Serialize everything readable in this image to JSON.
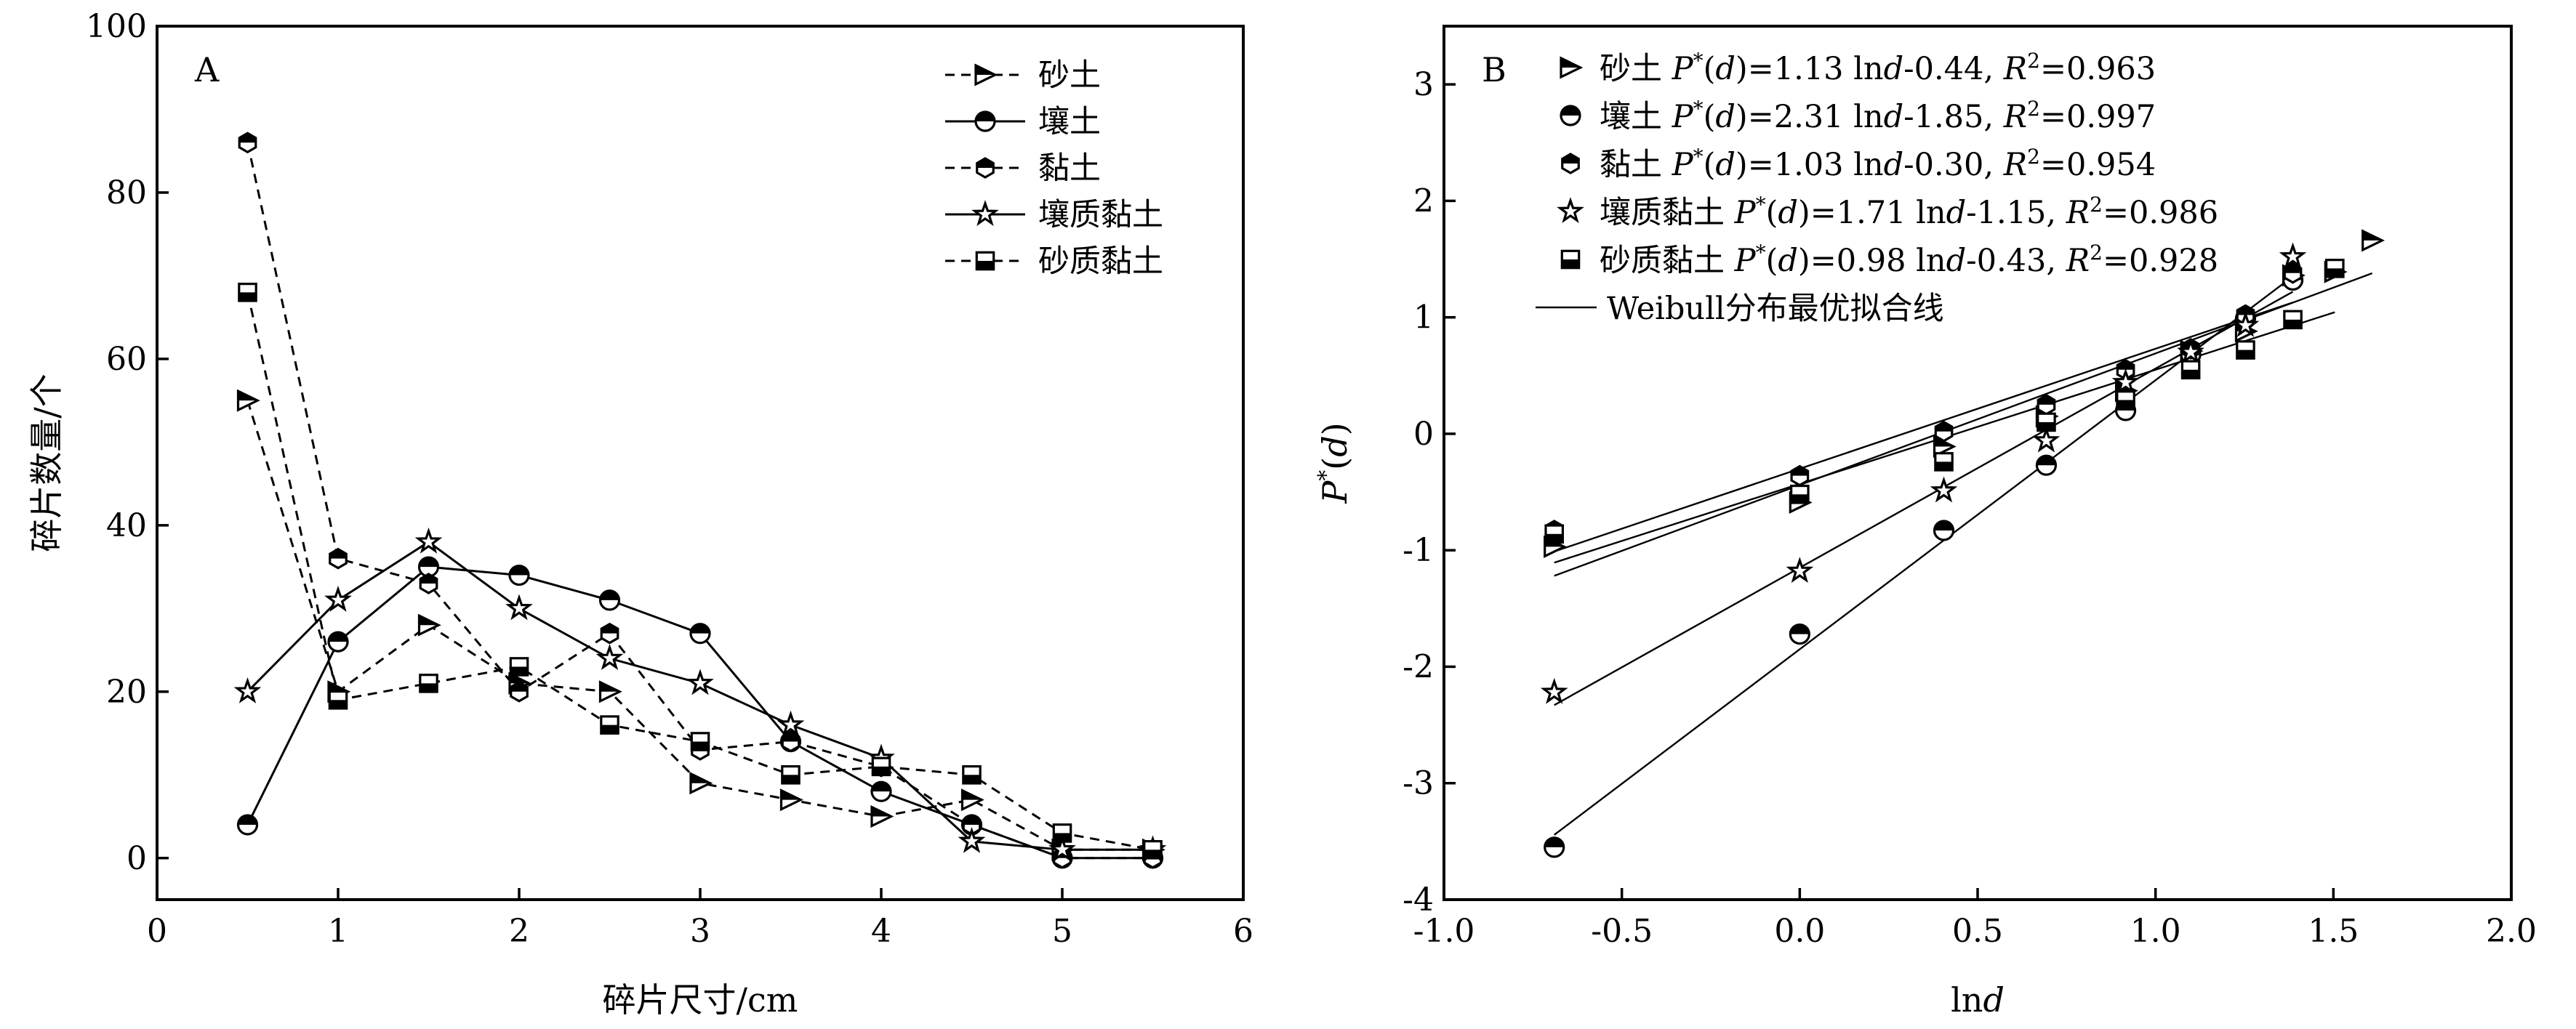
{
  "chart_data": [
    {
      "panel": "A",
      "type": "line",
      "xlabel": "碎片尺寸/cm",
      "ylabel": "碎片数量/个",
      "xlim": [
        0,
        6
      ],
      "ylim": [
        -5,
        100
      ],
      "xticks": [
        0,
        1,
        2,
        3,
        4,
        5,
        6
      ],
      "yticks": [
        0,
        20,
        40,
        60,
        80,
        100
      ],
      "grid": false,
      "legend_position": "top-right",
      "x": [
        0.5,
        1.0,
        1.5,
        2.0,
        2.5,
        3.0,
        3.5,
        4.0,
        4.5,
        5.0,
        5.5
      ],
      "series": [
        {
          "name": "砂土",
          "dash": "dashed",
          "marker": "triangle-right",
          "values": [
            55,
            20,
            28,
            21,
            20,
            9,
            7,
            5,
            7,
            1,
            1
          ]
        },
        {
          "name": "壤土",
          "dash": "solid",
          "marker": "circle-half",
          "values": [
            4,
            26,
            35,
            34,
            31,
            27,
            14,
            8,
            4,
            0,
            0
          ]
        },
        {
          "name": "黏土",
          "dash": "dashed",
          "marker": "hexagon-half",
          "values": [
            86,
            36,
            33,
            20,
            27,
            13,
            14,
            11,
            4,
            0,
            0
          ]
        },
        {
          "name": "壤质黏土",
          "dash": "solid",
          "marker": "star",
          "values": [
            20,
            31,
            38,
            30,
            24,
            21,
            16,
            12,
            2,
            1,
            1
          ]
        },
        {
          "name": "砂质黏土",
          "dash": "dashed",
          "marker": "square-half",
          "values": [
            68,
            19,
            21,
            23,
            16,
            14,
            10,
            11,
            10,
            3,
            1
          ]
        }
      ]
    },
    {
      "panel": "B",
      "type": "scatter",
      "xlabel": "lnd",
      "ylabel": "P*(d)",
      "xlim": [
        -1.0,
        2.0
      ],
      "ylim": [
        -4,
        3.5
      ],
      "xticks": [
        -1.0,
        -0.5,
        0.0,
        0.5,
        1.0,
        1.5,
        2.0
      ],
      "xtick_labels": [
        "-1.0",
        "-0.5",
        "0.0",
        "0.5",
        "1.0",
        "1.5",
        "2.0"
      ],
      "yticks": [
        -4,
        -3,
        -2,
        -1,
        0,
        1,
        2,
        3
      ],
      "grid": false,
      "legend_position": "top-left",
      "fit_line_label": "Weibull分布最优拟合线",
      "series": [
        {
          "name": "砂土",
          "marker": "triangle-right",
          "slope": 1.13,
          "intercept": -0.44,
          "r2": "0.963",
          "x": [
            -0.69,
            0.0,
            0.405,
            0.693,
            0.916,
            1.099,
            1.253,
            1.386,
            1.504,
            1.609
          ],
          "y": [
            -0.97,
            -0.59,
            -0.11,
            0.15,
            0.37,
            0.71,
            0.88,
            1.36,
            1.39,
            1.66
          ]
        },
        {
          "name": "壤土",
          "marker": "circle-half",
          "slope": 2.31,
          "intercept": -1.85,
          "r2": "0.997",
          "x": [
            -0.69,
            0.0,
            0.405,
            0.693,
            0.916,
            1.099,
            1.253,
            1.386
          ],
          "y": [
            -3.55,
            -1.72,
            -0.83,
            -0.27,
            0.2,
            0.68,
            0.99,
            1.32
          ]
        },
        {
          "name": "黏土",
          "marker": "hexagon-half",
          "slope": 1.03,
          "intercept": -0.3,
          "r2": "0.954",
          "x": [
            -0.69,
            0.0,
            0.405,
            0.693,
            0.916,
            1.099,
            1.253,
            1.386
          ],
          "y": [
            -0.83,
            -0.36,
            0.02,
            0.25,
            0.55,
            0.73,
            1.02,
            1.38
          ]
        },
        {
          "name": "壤质黏土",
          "marker": "star",
          "slope": 1.71,
          "intercept": -1.15,
          "r2": "0.986",
          "x": [
            -0.69,
            0.0,
            0.405,
            0.693,
            0.916,
            1.099,
            1.253,
            1.386
          ],
          "y": [
            -2.22,
            -1.18,
            -0.49,
            -0.06,
            0.44,
            0.7,
            0.93,
            1.52
          ]
        },
        {
          "name": "砂质黏土",
          "marker": "square-half",
          "slope": 0.98,
          "intercept": -0.43,
          "r2": "0.928",
          "x": [
            -0.69,
            0.0,
            0.405,
            0.693,
            0.916,
            1.099,
            1.253,
            1.386,
            1.504
          ],
          "y": [
            -0.86,
            -0.52,
            -0.24,
            0.1,
            0.29,
            0.55,
            0.72,
            0.98,
            1.42
          ]
        }
      ],
      "legend_lines": [
        {
          "soil": "砂土",
          "eq": "1.13 ln",
          "const": "-0.44, ",
          "r2": "0.963"
        },
        {
          "soil": "壤土",
          "eq": "2.31 ln",
          "const": "-1.85, ",
          "r2": "0.997"
        },
        {
          "soil": "黏土",
          "eq": "1.03 ln",
          "const": "-0.30, ",
          "r2": "0.954"
        },
        {
          "soil": "壤质黏土",
          "eq": "1.71 ln",
          "const": "-1.15, ",
          "r2": "0.986"
        },
        {
          "soil": "砂质黏土",
          "eq": "0.98 ln",
          "const": "-0.43, ",
          "r2": "0.928"
        }
      ]
    }
  ]
}
